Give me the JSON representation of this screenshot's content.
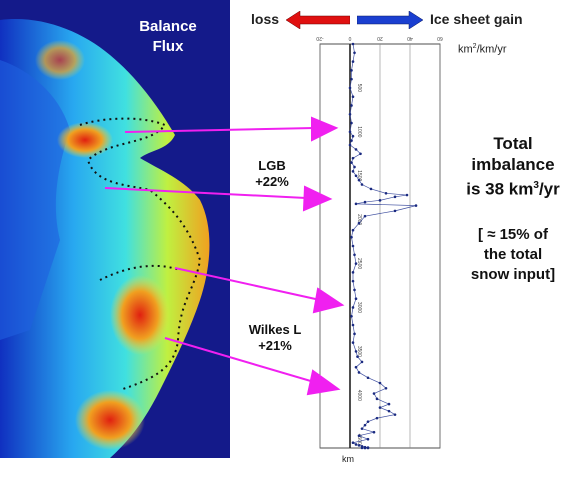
{
  "map": {
    "title_line1": "Balance",
    "title_line2": "Flux"
  },
  "legend": {
    "loss_label": "loss",
    "gain_label": "Ice sheet gain",
    "loss_color": "#e01010",
    "gain_color": "#1a3fd0"
  },
  "units": {
    "base": "km",
    "exp": "2",
    "rest": "/km/yr"
  },
  "labels": {
    "lgb_name": "LGB",
    "lgb_pct": "+22%",
    "wilkes_name": "Wilkes L",
    "wilkes_pct": "+21%"
  },
  "info": {
    "line1": "Total",
    "line2": "imbalance",
    "line3a": "is 38 km",
    "line3sup": "3",
    "line3b": "/yr",
    "note1": "[ ≈ 15% of",
    "note2": "the total",
    "note3": "snow input]"
  },
  "chart_data": {
    "type": "line",
    "xlabel": "km²/km/yr",
    "ylabel": "km",
    "x_ticks": [
      "-20",
      "0",
      "20",
      "40",
      "60"
    ],
    "y_ticks": [
      "0",
      "500",
      "1000",
      "1500",
      "2000",
      "2500",
      "3000",
      "3500",
      "4000",
      "4500"
    ],
    "xlim": [
      -20,
      60
    ],
    "ylim": [
      0,
      4600
    ],
    "series": [
      {
        "name": "",
        "color": "#1a2a80",
        "x": [
          2,
          3,
          2,
          1,
          1,
          0,
          2,
          1,
          0,
          1,
          0,
          2,
          1,
          0,
          4,
          7,
          2,
          1,
          3,
          2,
          4,
          6,
          8,
          14,
          24,
          38,
          30,
          20,
          10,
          4,
          44,
          30,
          10,
          6,
          2,
          1,
          2,
          3,
          4,
          2,
          2,
          3,
          4,
          2,
          1,
          2,
          3,
          2,
          4,
          5,
          8,
          4,
          6,
          12,
          20,
          24,
          16,
          18,
          26,
          20,
          26,
          30,
          18,
          12,
          10,
          8,
          16,
          6,
          12,
          2,
          4,
          6,
          8,
          10,
          12,
          10,
          8,
          10,
          12
        ],
        "y": [
          0,
          100,
          200,
          300,
          400,
          500,
          600,
          700,
          800,
          900,
          1000,
          1050,
          1100,
          1150,
          1200,
          1250,
          1300,
          1350,
          1400,
          1450,
          1500,
          1550,
          1600,
          1650,
          1700,
          1720,
          1740,
          1780,
          1800,
          1820,
          1840,
          1900,
          1960,
          2040,
          2120,
          2200,
          2300,
          2400,
          2500,
          2600,
          2700,
          2800,
          2900,
          3000,
          3100,
          3200,
          3300,
          3400,
          3500,
          3560,
          3620,
          3680,
          3740,
          3800,
          3860,
          3920,
          3980,
          4040,
          4100,
          4140,
          4180,
          4220,
          4260,
          4300,
          4340,
          4380,
          4420,
          4460,
          4500,
          4540,
          4560,
          4570,
          4580,
          4590,
          4595,
          4598,
          4599,
          4600,
          4600
        ]
      }
    ]
  }
}
